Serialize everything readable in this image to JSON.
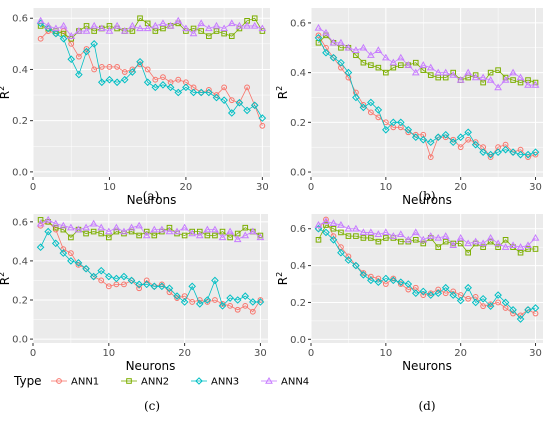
{
  "legend": {
    "title": "Type",
    "entries": [
      {
        "name": "ANN1",
        "color": "#F8766D",
        "shape": "circle"
      },
      {
        "name": "ANN2",
        "color": "#7CAE00",
        "shape": "square"
      },
      {
        "name": "ANN3",
        "color": "#00BFC4",
        "shape": "diamond"
      },
      {
        "name": "ANN4",
        "color": "#C77CFF",
        "shape": "triangle"
      }
    ]
  },
  "chart_data": [
    {
      "type": "line",
      "panel_label": "(a)",
      "xlabel": "Neurons",
      "ylabel": "R",
      "ylabel_superscript": "2",
      "xlim": [
        0,
        31
      ],
      "ylim": [
        -0.02,
        0.64
      ],
      "xticks": [
        0,
        10,
        20,
        30
      ],
      "yticks": [
        0.0,
        0.2,
        0.4,
        0.6
      ],
      "ytick_labels": [
        "0.0",
        "0.2",
        "0.4",
        "0.6"
      ],
      "grid": true,
      "x": [
        1,
        2,
        3,
        4,
        5,
        6,
        7,
        8,
        9,
        10,
        11,
        12,
        13,
        14,
        15,
        16,
        17,
        18,
        19,
        20,
        21,
        22,
        23,
        24,
        25,
        26,
        27,
        28,
        29,
        30
      ],
      "series": [
        {
          "name": "ANN1",
          "values": [
            0.52,
            0.55,
            0.54,
            0.55,
            0.5,
            0.45,
            0.48,
            0.4,
            0.41,
            0.41,
            0.41,
            0.39,
            0.4,
            0.42,
            0.4,
            0.36,
            0.37,
            0.35,
            0.36,
            0.35,
            0.33,
            0.31,
            0.32,
            0.3,
            0.33,
            0.28,
            0.27,
            0.33,
            0.26,
            0.18
          ]
        },
        {
          "name": "ANN2",
          "values": [
            0.57,
            0.56,
            0.55,
            0.54,
            0.52,
            0.55,
            0.57,
            0.55,
            0.56,
            0.57,
            0.56,
            0.55,
            0.55,
            0.6,
            0.58,
            0.55,
            0.56,
            0.57,
            0.58,
            0.55,
            0.56,
            0.55,
            0.53,
            0.55,
            0.54,
            0.53,
            0.56,
            0.59,
            0.6,
            0.55
          ]
        },
        {
          "name": "ANN3",
          "values": [
            0.58,
            0.56,
            0.54,
            0.52,
            0.44,
            0.38,
            0.47,
            0.5,
            0.35,
            0.36,
            0.35,
            0.36,
            0.39,
            0.43,
            0.35,
            0.33,
            0.34,
            0.33,
            0.31,
            0.33,
            0.31,
            0.31,
            0.31,
            0.29,
            0.28,
            0.23,
            0.27,
            0.24,
            0.26,
            0.21
          ]
        },
        {
          "name": "ANN4",
          "values": [
            0.59,
            0.57,
            0.56,
            0.57,
            0.53,
            0.55,
            0.55,
            0.57,
            0.56,
            0.55,
            0.57,
            0.55,
            0.57,
            0.56,
            0.56,
            0.57,
            0.58,
            0.57,
            0.59,
            0.56,
            0.54,
            0.58,
            0.56,
            0.57,
            0.56,
            0.58,
            0.57,
            0.57,
            0.57,
            0.56
          ]
        }
      ]
    },
    {
      "type": "line",
      "panel_label": "(b)",
      "xlabel": "Neurons",
      "ylabel": "R",
      "ylabel_superscript": "2",
      "xlim": [
        0,
        31
      ],
      "ylim": [
        -0.02,
        0.66
      ],
      "xticks": [
        0,
        10,
        20,
        30
      ],
      "yticks": [
        0.0,
        0.2,
        0.4,
        0.6
      ],
      "ytick_labels": [
        "0.0",
        "0.2",
        "0.4",
        "0.6"
      ],
      "grid": true,
      "x": [
        1,
        2,
        3,
        4,
        5,
        6,
        7,
        8,
        9,
        10,
        11,
        12,
        13,
        14,
        15,
        16,
        17,
        18,
        19,
        20,
        21,
        22,
        23,
        24,
        25,
        26,
        27,
        28,
        29,
        30
      ],
      "series": [
        {
          "name": "ANN1",
          "values": [
            0.55,
            0.5,
            0.46,
            0.42,
            0.38,
            0.32,
            0.27,
            0.24,
            0.22,
            0.2,
            0.18,
            0.18,
            0.16,
            0.15,
            0.15,
            0.06,
            0.14,
            0.14,
            0.13,
            0.1,
            0.13,
            0.12,
            0.1,
            0.06,
            0.1,
            0.11,
            0.08,
            0.09,
            0.06,
            0.07
          ]
        },
        {
          "name": "ANN2",
          "values": [
            0.52,
            0.55,
            0.52,
            0.5,
            0.5,
            0.47,
            0.44,
            0.43,
            0.42,
            0.4,
            0.42,
            0.43,
            0.43,
            0.44,
            0.41,
            0.39,
            0.38,
            0.38,
            0.4,
            0.37,
            0.38,
            0.39,
            0.36,
            0.4,
            0.41,
            0.38,
            0.37,
            0.36,
            0.37,
            0.36
          ]
        },
        {
          "name": "ANN3",
          "values": [
            0.54,
            0.48,
            0.46,
            0.44,
            0.4,
            0.3,
            0.26,
            0.28,
            0.25,
            0.17,
            0.2,
            0.2,
            0.17,
            0.14,
            0.13,
            0.12,
            0.14,
            0.15,
            0.12,
            0.14,
            0.16,
            0.11,
            0.08,
            0.07,
            0.08,
            0.09,
            0.08,
            0.07,
            0.07,
            0.08
          ]
        },
        {
          "name": "ANN4",
          "values": [
            0.58,
            0.56,
            0.52,
            0.52,
            0.5,
            0.49,
            0.5,
            0.47,
            0.49,
            0.46,
            0.44,
            0.46,
            0.43,
            0.4,
            0.43,
            0.42,
            0.4,
            0.4,
            0.39,
            0.37,
            0.4,
            0.38,
            0.38,
            0.37,
            0.34,
            0.37,
            0.4,
            0.38,
            0.35,
            0.35
          ]
        }
      ]
    },
    {
      "type": "line",
      "panel_label": "(c)",
      "xlabel": "Neurons",
      "ylabel": "R",
      "ylabel_superscript": "2",
      "xlim": [
        0,
        31
      ],
      "ylim": [
        -0.02,
        0.64
      ],
      "xticks": [
        0,
        10,
        20,
        30
      ],
      "yticks": [
        0.0,
        0.2,
        0.4,
        0.6
      ],
      "ytick_labels": [
        "0.0",
        "0.2",
        "0.4",
        "0.6"
      ],
      "grid": true,
      "x": [
        1,
        2,
        3,
        4,
        5,
        6,
        7,
        8,
        9,
        10,
        11,
        12,
        13,
        14,
        15,
        16,
        17,
        18,
        19,
        20,
        21,
        22,
        23,
        24,
        25,
        26,
        27,
        28,
        29,
        30
      ],
      "series": [
        {
          "name": "ANN1",
          "values": [
            0.58,
            0.6,
            0.56,
            0.46,
            0.44,
            0.38,
            0.36,
            0.32,
            0.3,
            0.27,
            0.28,
            0.28,
            0.3,
            0.26,
            0.3,
            0.27,
            0.28,
            0.24,
            0.21,
            0.22,
            0.19,
            0.2,
            0.19,
            0.2,
            0.18,
            0.17,
            0.15,
            0.17,
            0.14,
            0.2
          ]
        },
        {
          "name": "ANN2",
          "values": [
            0.61,
            0.6,
            0.57,
            0.56,
            0.52,
            0.56,
            0.54,
            0.55,
            0.54,
            0.52,
            0.55,
            0.54,
            0.55,
            0.53,
            0.55,
            0.53,
            0.55,
            0.57,
            0.54,
            0.53,
            0.55,
            0.55,
            0.53,
            0.53,
            0.55,
            0.52,
            0.54,
            0.57,
            0.55,
            0.53
          ]
        },
        {
          "name": "ANN3",
          "values": [
            0.47,
            0.55,
            0.49,
            0.44,
            0.4,
            0.39,
            0.36,
            0.32,
            0.35,
            0.32,
            0.31,
            0.32,
            0.3,
            0.28,
            0.28,
            0.27,
            0.27,
            0.26,
            0.22,
            0.19,
            0.27,
            0.18,
            0.2,
            0.3,
            0.17,
            0.21,
            0.2,
            0.22,
            0.19,
            0.19
          ]
        },
        {
          "name": "ANN4",
          "values": [
            0.59,
            0.61,
            0.59,
            0.58,
            0.57,
            0.56,
            0.57,
            0.59,
            0.57,
            0.55,
            0.57,
            0.55,
            0.57,
            0.58,
            0.53,
            0.56,
            0.56,
            0.55,
            0.55,
            0.57,
            0.54,
            0.53,
            0.56,
            0.56,
            0.52,
            0.55,
            0.51,
            0.53,
            0.55,
            0.52
          ]
        }
      ]
    },
    {
      "type": "line",
      "panel_label": "(d)",
      "xlabel": "Neurons",
      "ylabel": "R",
      "ylabel_superscript": "2",
      "xlim": [
        0,
        31
      ],
      "ylim": [
        -0.02,
        0.68
      ],
      "xticks": [
        0,
        10,
        20,
        30
      ],
      "yticks": [
        0.0,
        0.2,
        0.4,
        0.6
      ],
      "ytick_labels": [
        "0.0",
        "0.2",
        "0.4",
        "0.6"
      ],
      "grid": true,
      "x": [
        1,
        2,
        3,
        4,
        5,
        6,
        7,
        8,
        9,
        10,
        11,
        12,
        13,
        14,
        15,
        16,
        17,
        18,
        19,
        20,
        21,
        22,
        23,
        24,
        25,
        26,
        27,
        28,
        29,
        30
      ],
      "series": [
        {
          "name": "ANN1",
          "values": [
            0.6,
            0.65,
            0.56,
            0.5,
            0.45,
            0.4,
            0.36,
            0.34,
            0.33,
            0.3,
            0.33,
            0.3,
            0.27,
            0.28,
            0.24,
            0.25,
            0.27,
            0.25,
            0.26,
            0.24,
            0.22,
            0.23,
            0.18,
            0.19,
            0.2,
            0.17,
            0.14,
            0.13,
            0.16,
            0.14
          ]
        },
        {
          "name": "ANN2",
          "values": [
            0.54,
            0.62,
            0.6,
            0.58,
            0.56,
            0.56,
            0.55,
            0.55,
            0.53,
            0.55,
            0.55,
            0.53,
            0.53,
            0.54,
            0.52,
            0.55,
            0.5,
            0.53,
            0.52,
            0.52,
            0.47,
            0.52,
            0.5,
            0.53,
            0.5,
            0.54,
            0.5,
            0.47,
            0.49,
            0.49
          ]
        },
        {
          "name": "ANN3",
          "values": [
            0.6,
            0.58,
            0.54,
            0.47,
            0.43,
            0.4,
            0.35,
            0.32,
            0.31,
            0.33,
            0.32,
            0.31,
            0.3,
            0.25,
            0.26,
            0.24,
            0.25,
            0.28,
            0.24,
            0.21,
            0.28,
            0.2,
            0.22,
            0.18,
            0.24,
            0.2,
            0.16,
            0.11,
            0.16,
            0.17
          ]
        },
        {
          "name": "ANN4",
          "values": [
            0.62,
            0.64,
            0.63,
            0.62,
            0.6,
            0.6,
            0.58,
            0.58,
            0.57,
            0.58,
            0.56,
            0.57,
            0.54,
            0.58,
            0.54,
            0.56,
            0.55,
            0.56,
            0.51,
            0.55,
            0.52,
            0.53,
            0.52,
            0.55,
            0.52,
            0.5,
            0.51,
            0.5,
            0.51,
            0.55
          ]
        }
      ]
    }
  ]
}
